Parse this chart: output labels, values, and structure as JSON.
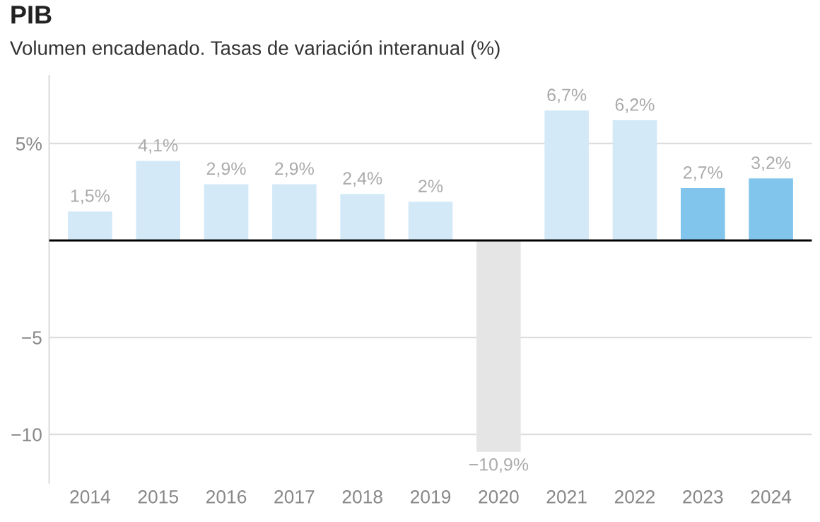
{
  "chart_data": {
    "type": "bar",
    "title": "PIB",
    "subtitle": "Volumen encadenado. Tasas de variación interanual (%)",
    "categories": [
      "2014",
      "2015",
      "2016",
      "2017",
      "2018",
      "2019",
      "2020",
      "2021",
      "2022",
      "2023",
      "2024"
    ],
    "values": [
      1.5,
      4.1,
      2.9,
      2.9,
      2.4,
      2,
      -10.9,
      6.7,
      6.2,
      2.7,
      3.2
    ],
    "colors": [
      "#d3e9f8",
      "#d3e9f8",
      "#d3e9f8",
      "#d3e9f8",
      "#d3e9f8",
      "#d3e9f8",
      "#e5e5e5",
      "#d3e9f8",
      "#d3e9f8",
      "#82c5ec",
      "#82c5ec"
    ],
    "value_labels": [
      "1,5%",
      "4,1%",
      "2,9%",
      "2,9%",
      "2,4%",
      "2%",
      "−10,9%",
      "6,7%",
      "6,2%",
      "2,7%",
      "3,2%"
    ],
    "ylim": [
      -12.5,
      8.5
    ],
    "yticks": [
      {
        "value": 5,
        "label": "5%"
      },
      -5,
      -10
    ],
    "ref_lines": [
      {
        "axis": "y",
        "value": 0,
        "color": "#000000"
      }
    ],
    "grid": "y"
  }
}
